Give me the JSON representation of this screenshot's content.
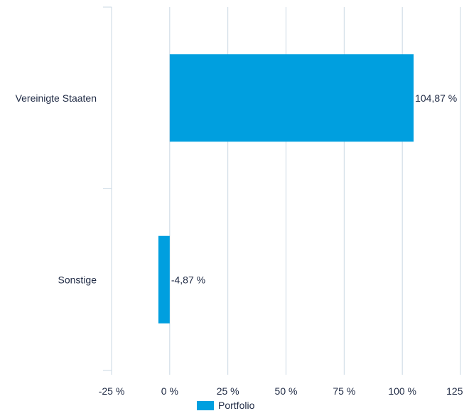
{
  "chart_data": {
    "type": "bar",
    "orientation": "horizontal",
    "categories": [
      "Vereinigte Staaten",
      "Sonstige"
    ],
    "series": [
      {
        "name": "Portfolio",
        "values": [
          104.87,
          -4.87
        ],
        "color": "#009fdf"
      }
    ],
    "value_labels": [
      "104,87 %",
      "-4,87 %"
    ],
    "x_ticks": [
      -25,
      0,
      25,
      50,
      75,
      100,
      125
    ],
    "x_tick_labels": [
      "-25 %",
      "0 %",
      "25 %",
      "50 %",
      "75 %",
      "100 %",
      "125 %"
    ],
    "xlim": [
      -25,
      125
    ],
    "grid": true,
    "legend": "bottom-center"
  },
  "legend": {
    "label": "Portfolio"
  }
}
